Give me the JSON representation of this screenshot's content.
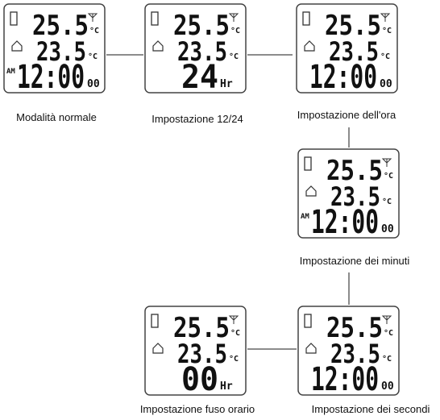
{
  "nodes": [
    {
      "label": "Modalità normale",
      "outdoor": "25.5",
      "indoor": "23.5",
      "unit": "°C",
      "prefix": "AM",
      "time": "12:00",
      "suffix": "00"
    },
    {
      "label": "Impostazione 12/24",
      "outdoor": "25.5",
      "indoor": "23.5",
      "unit": "°C",
      "time": "24",
      "suffix": "Hr"
    },
    {
      "label": "Impostazione dell'ora",
      "outdoor": "25.5",
      "indoor": "23.5",
      "unit": "°C",
      "time": "12:00",
      "suffix": "00"
    },
    {
      "label": "Impostazione dei minuti",
      "outdoor": "25.5",
      "indoor": "23.5",
      "unit": "°C",
      "prefix": "AM",
      "time": "12:00",
      "suffix": "00"
    },
    {
      "label": "Impostazione dei secondi",
      "outdoor": "25.5",
      "indoor": "23.5",
      "unit": "°C",
      "time": "12:00",
      "suffix": "00"
    },
    {
      "label": "Impostazione fuso orario",
      "outdoor": "25.5",
      "indoor": "23.5",
      "unit": "°C",
      "time": "00",
      "suffix": "Hr"
    }
  ]
}
